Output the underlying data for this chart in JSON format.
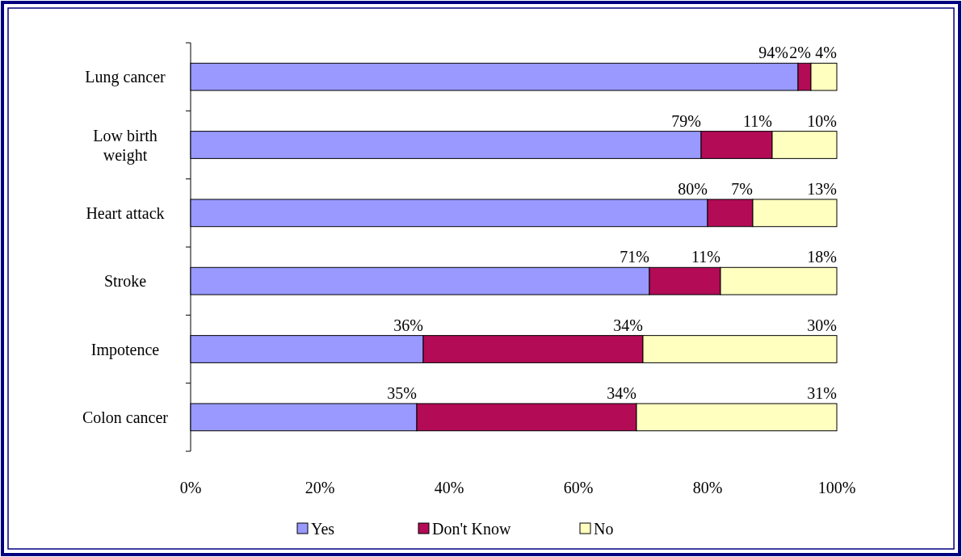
{
  "chart_data": {
    "type": "bar",
    "orientation": "horizontal",
    "stacked": true,
    "categories": [
      "Lung cancer",
      "Low birth weight",
      "Heart attack",
      "Stroke",
      "Impotence",
      "Colon cancer"
    ],
    "series": [
      {
        "name": "Yes",
        "color": "#9999ff",
        "values": [
          94,
          79,
          80,
          71,
          36,
          35
        ],
        "value_labels": [
          "94%",
          "79%",
          "80%",
          "71%",
          "36%",
          "35%"
        ]
      },
      {
        "name": "Don't Know",
        "color": "#b30b56",
        "values": [
          2,
          11,
          7,
          11,
          34,
          34
        ],
        "value_labels": [
          "2%",
          "11%",
          "7%",
          "11%",
          "34%",
          "34%"
        ]
      },
      {
        "name": "No",
        "color": "#ffffc0",
        "values": [
          4,
          10,
          13,
          18,
          30,
          31
        ],
        "value_labels": [
          "4%",
          "10%",
          "13%",
          "18%",
          "30%",
          "31%"
        ]
      }
    ],
    "xlim": [
      0,
      100
    ],
    "xticks": [
      {
        "value": 0,
        "label": "0%"
      },
      {
        "value": 20,
        "label": "20%"
      },
      {
        "value": 40,
        "label": "40%"
      },
      {
        "value": 60,
        "label": "60%"
      },
      {
        "value": 80,
        "label": "80%"
      },
      {
        "value": 100,
        "label": "100%"
      }
    ],
    "legend": "bottom"
  }
}
